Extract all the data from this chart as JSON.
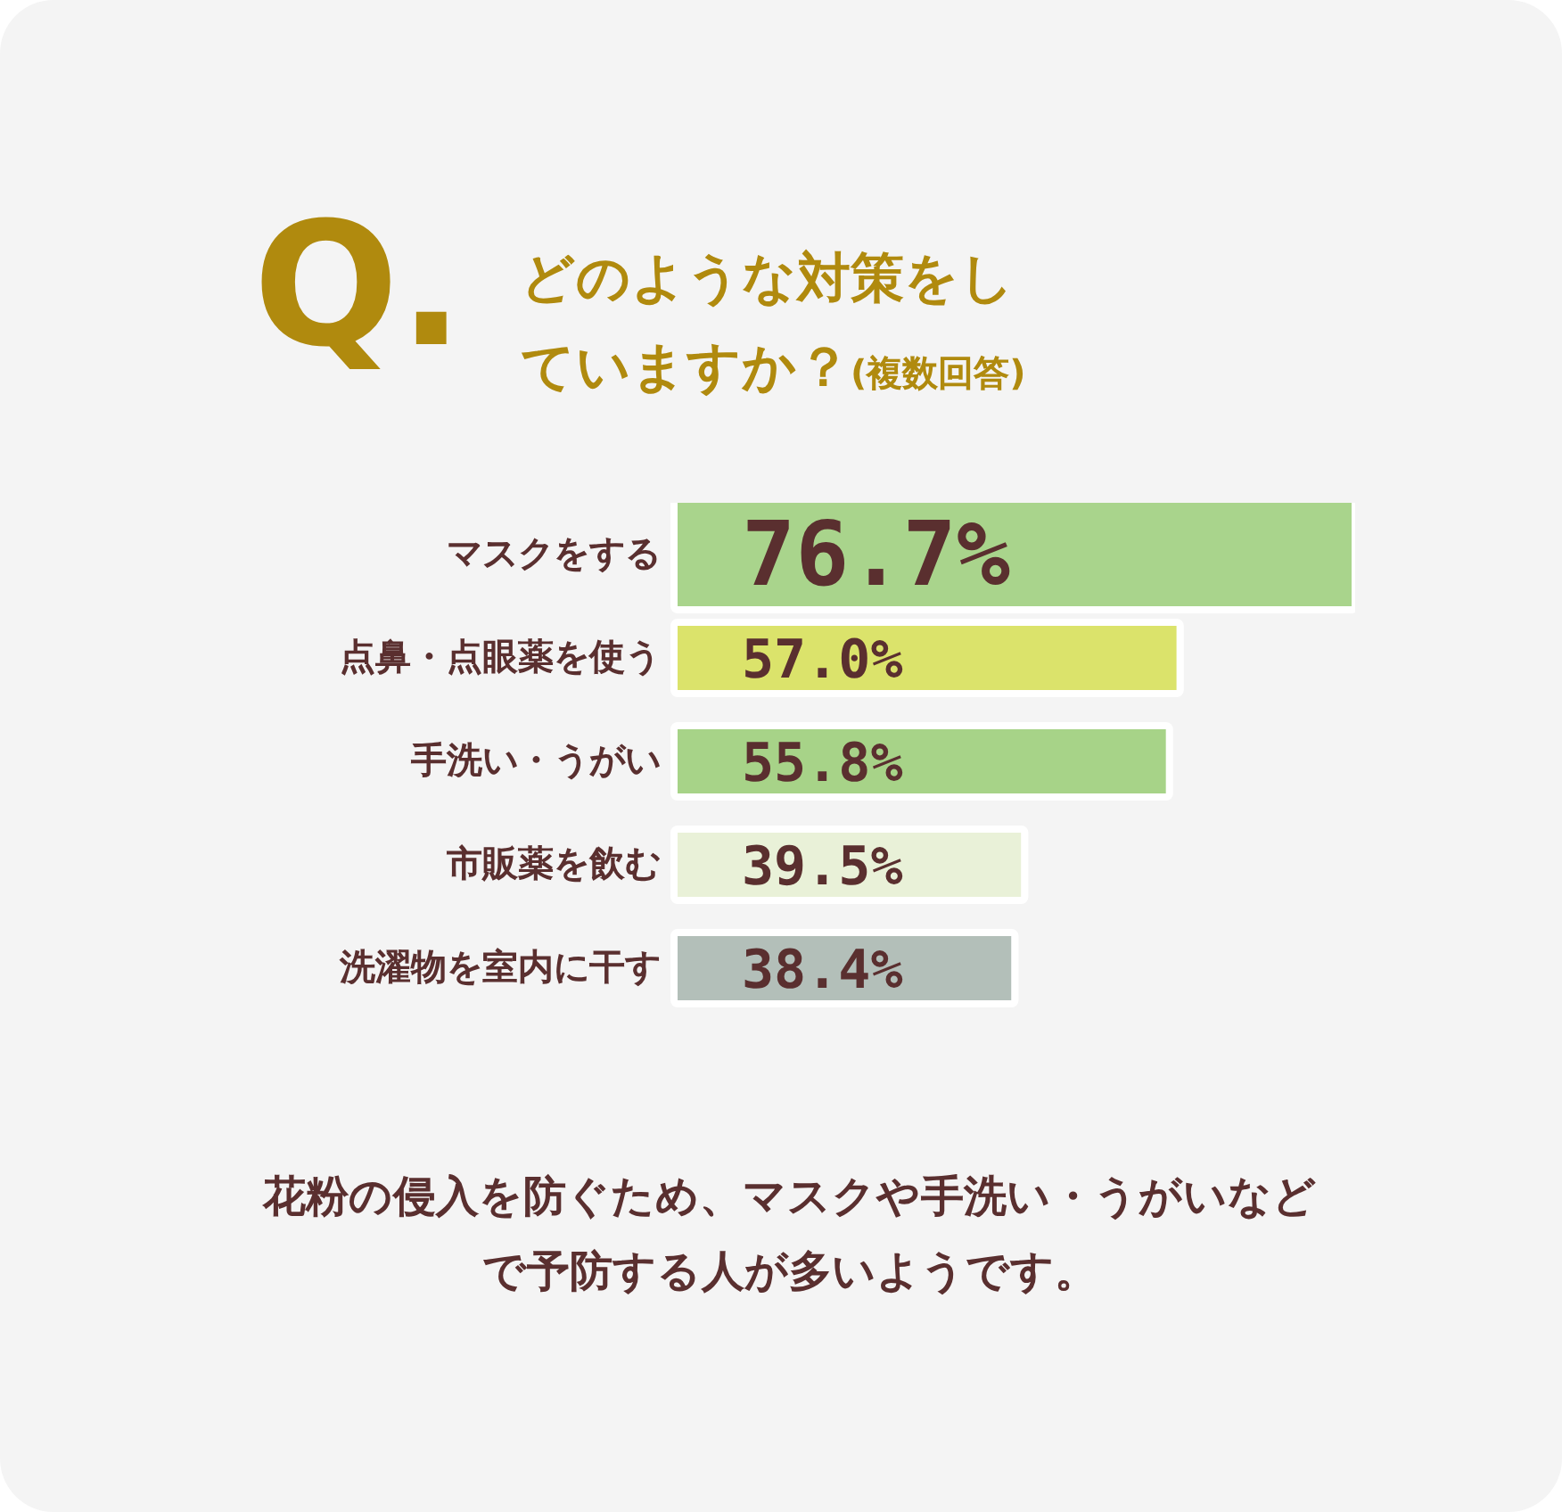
{
  "chart_data": {
    "type": "bar",
    "orientation": "horizontal",
    "title": "どのような対策をしていますか？",
    "subtitle": "(複数回答)",
    "annotations": [
      "Q.",
      "花粉の侵入を防ぐため、マスクや手洗い・うがいなどで予防する人が多いようです。"
    ],
    "categories": [
      "マスクをする",
      "点鼻・点眼薬を使う",
      "手洗い・うがい",
      "市販薬を飲む",
      "洗濯物を室内に干す"
    ],
    "values": [
      76.7,
      57.0,
      55.8,
      39.5,
      38.4
    ],
    "colors": [
      "#a9d48c",
      "#dbe36b",
      "#a7d388",
      "#e9f1d8",
      "#b3bfb9"
    ],
    "value_labels": [
      "76.7%",
      "57.0%",
      "55.8%",
      "39.5%",
      "38.4%"
    ]
  }
}
